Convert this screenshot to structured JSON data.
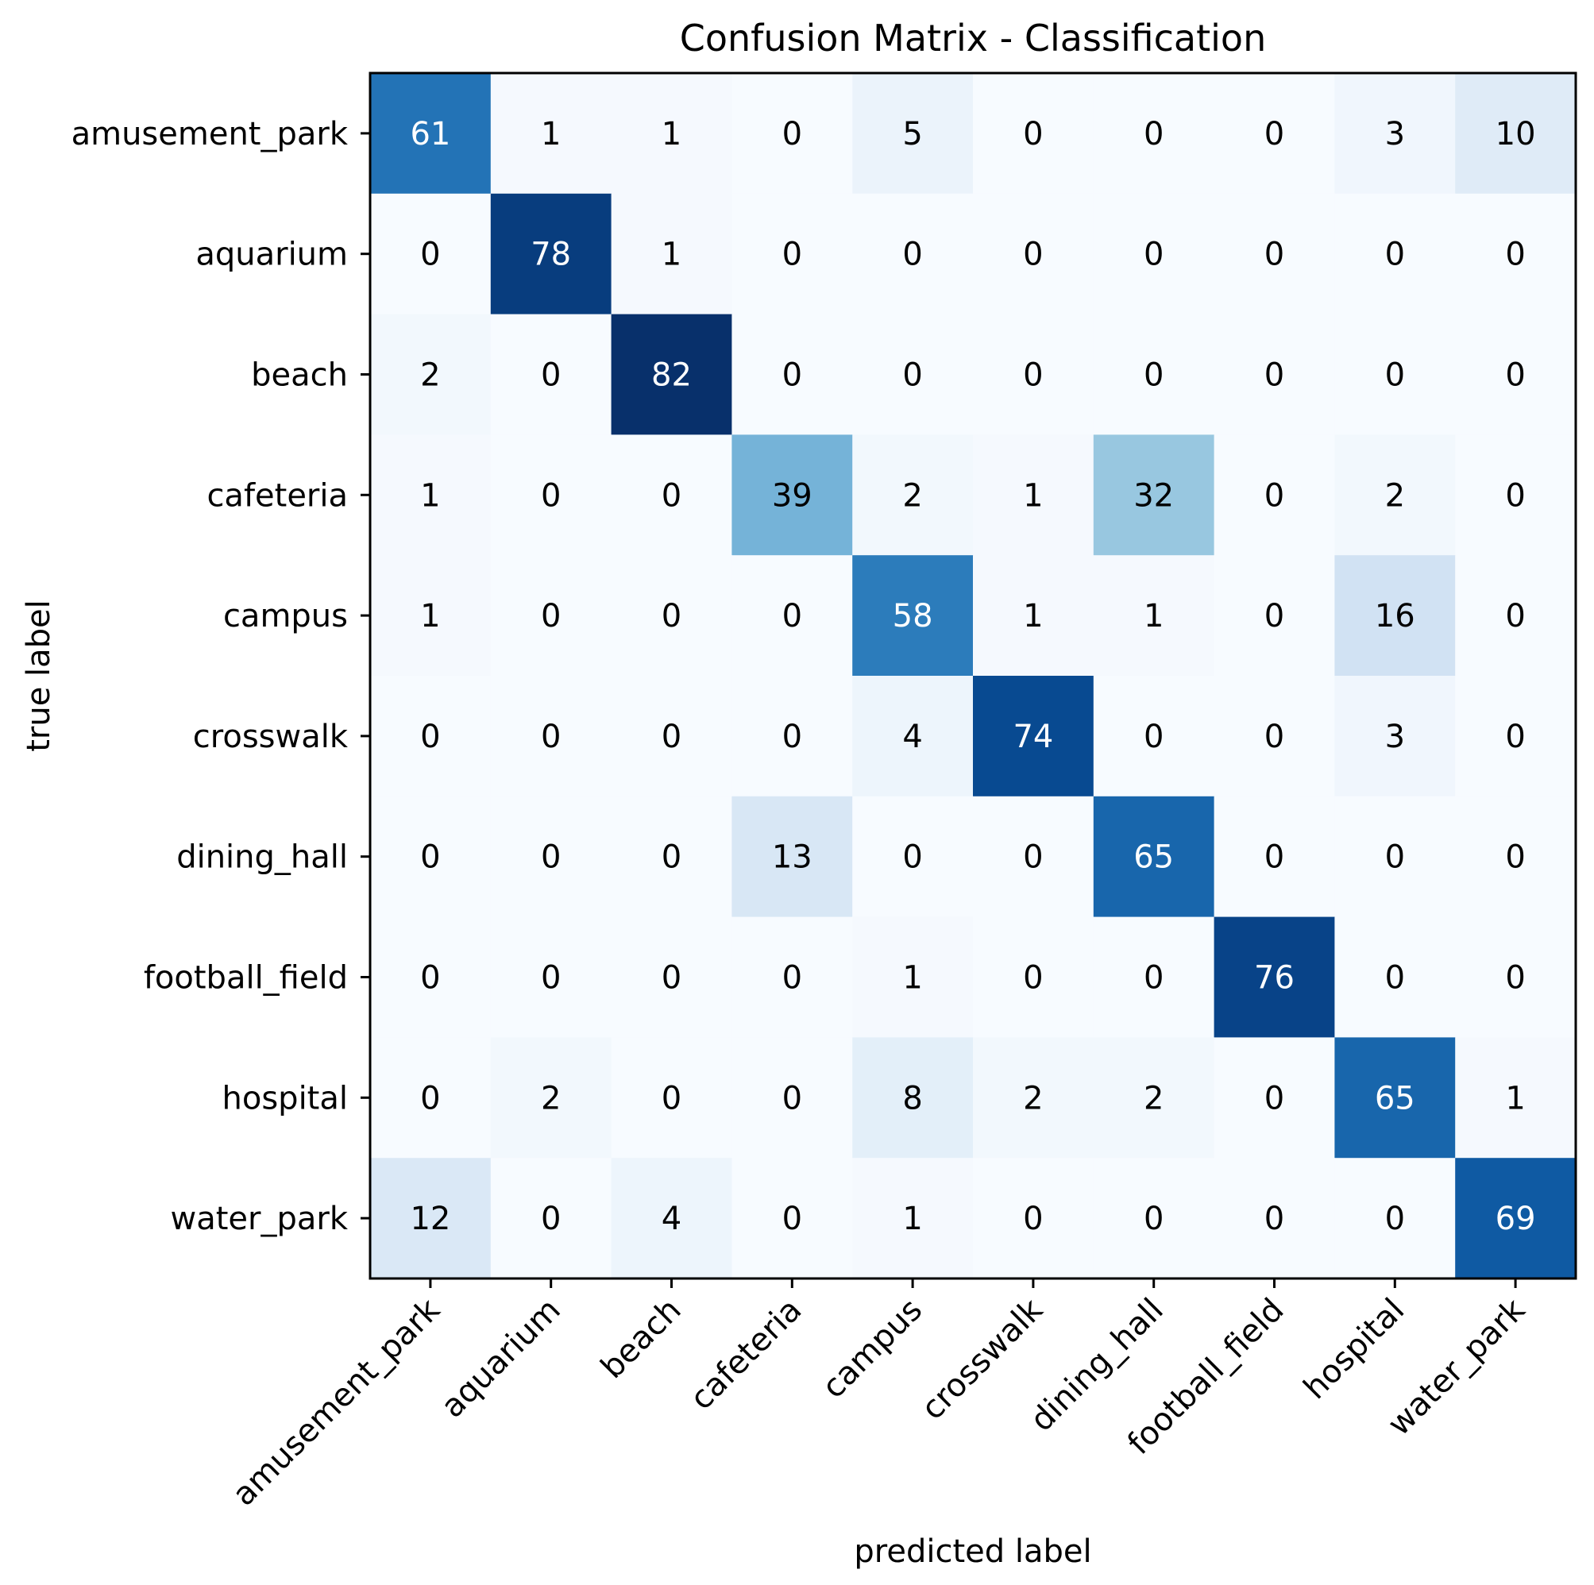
{
  "chart_data": {
    "type": "heatmap",
    "title": "Confusion Matrix - Classification",
    "xlabel": "predicted label",
    "ylabel": "true label",
    "x_categories": [
      "amusement_park",
      "aquarium",
      "beach",
      "cafeteria",
      "campus",
      "crosswalk",
      "dining_hall",
      "football_field",
      "hospital",
      "water_park"
    ],
    "y_categories": [
      "amusement_park",
      "aquarium",
      "beach",
      "cafeteria",
      "campus",
      "crosswalk",
      "dining_hall",
      "football_field",
      "hospital",
      "water_park"
    ],
    "values": [
      [
        61,
        1,
        1,
        0,
        5,
        0,
        0,
        0,
        3,
        10
      ],
      [
        0,
        78,
        1,
        0,
        0,
        0,
        0,
        0,
        0,
        0
      ],
      [
        2,
        0,
        82,
        0,
        0,
        0,
        0,
        0,
        0,
        0
      ],
      [
        1,
        0,
        0,
        39,
        2,
        1,
        32,
        0,
        2,
        0
      ],
      [
        1,
        0,
        0,
        0,
        58,
        1,
        1,
        0,
        16,
        0
      ],
      [
        0,
        0,
        0,
        0,
        4,
        74,
        0,
        0,
        3,
        0
      ],
      [
        0,
        0,
        0,
        13,
        0,
        0,
        65,
        0,
        0,
        0
      ],
      [
        0,
        0,
        0,
        0,
        1,
        0,
        0,
        76,
        0,
        0
      ],
      [
        0,
        2,
        0,
        0,
        8,
        2,
        2,
        0,
        65,
        1
      ],
      [
        12,
        0,
        4,
        0,
        1,
        0,
        0,
        0,
        0,
        69
      ]
    ],
    "colormap": "Blues",
    "grid": false,
    "legend": "none"
  }
}
